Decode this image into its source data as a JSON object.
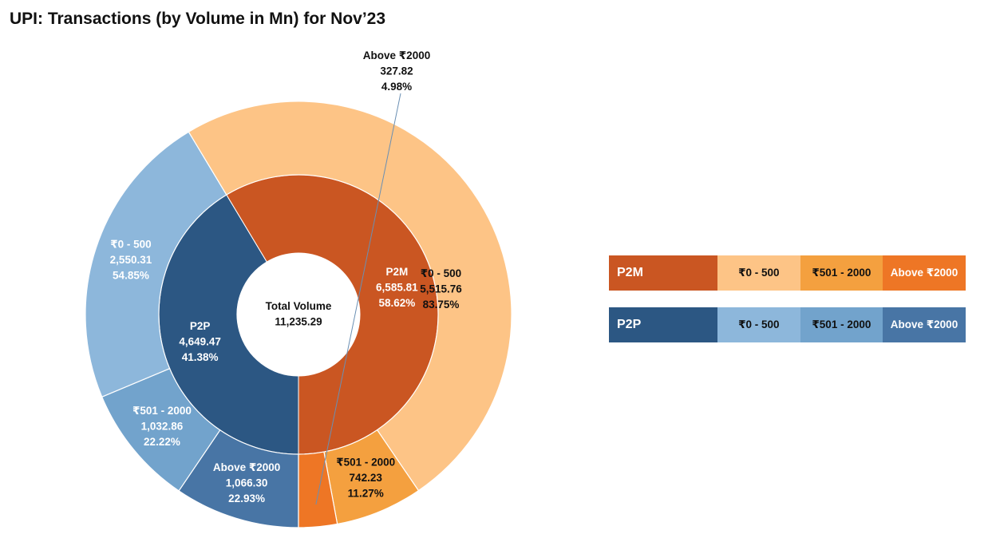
{
  "title": "UPI: Transactions (by Volume in Mn) for Nov’23",
  "chart_data": {
    "type": "sunburst",
    "title": "UPI: Transactions (by Volume in Mn) for Nov’23",
    "center": {
      "label": "Total Volume",
      "value": "11,235.29"
    },
    "categories": [
      {
        "name": "P2M",
        "value": 6585.81,
        "value_label": "6,585.81",
        "pct_label": "58.62%",
        "color": "#CA5622",
        "segments": [
          {
            "name": "₹0 - 500",
            "value": 5515.76,
            "value_label": "5,515.76",
            "pct_label": "83.75%",
            "color": "#FDC486"
          },
          {
            "name": "₹501 - 2000",
            "value": 742.23,
            "value_label": "742.23",
            "pct_label": "11.27%",
            "color": "#F4A03F"
          },
          {
            "name": "Above ₹2000",
            "value": 327.82,
            "value_label": "327.82",
            "pct_label": "4.98%",
            "color": "#EE7625"
          }
        ]
      },
      {
        "name": "P2P",
        "value": 4649.47,
        "value_label": "4,649.47",
        "pct_label": "41.38%",
        "color": "#2C5783",
        "segments": [
          {
            "name": "₹0 - 500",
            "value": 2550.31,
            "value_label": "2,550.31",
            "pct_label": "54.85%",
            "color": "#8DB7DB"
          },
          {
            "name": "₹501 - 2000",
            "value": 1032.86,
            "value_label": "1,032.86",
            "pct_label": "22.22%",
            "color": "#72A3CC"
          },
          {
            "name": "Above ₹2000",
            "value": 1066.3,
            "value_label": "1,066.30",
            "pct_label": "22.93%",
            "color": "#4875A5"
          }
        ]
      }
    ]
  },
  "legend": {
    "p2m": {
      "label": "P2M",
      "items": [
        "₹0 - 500",
        "₹501 - 2000",
        "Above ₹2000"
      ]
    },
    "p2p": {
      "label": "P2P",
      "items": [
        "₹0 - 500",
        "₹501 - 2000",
        "Above ₹2000"
      ]
    }
  }
}
